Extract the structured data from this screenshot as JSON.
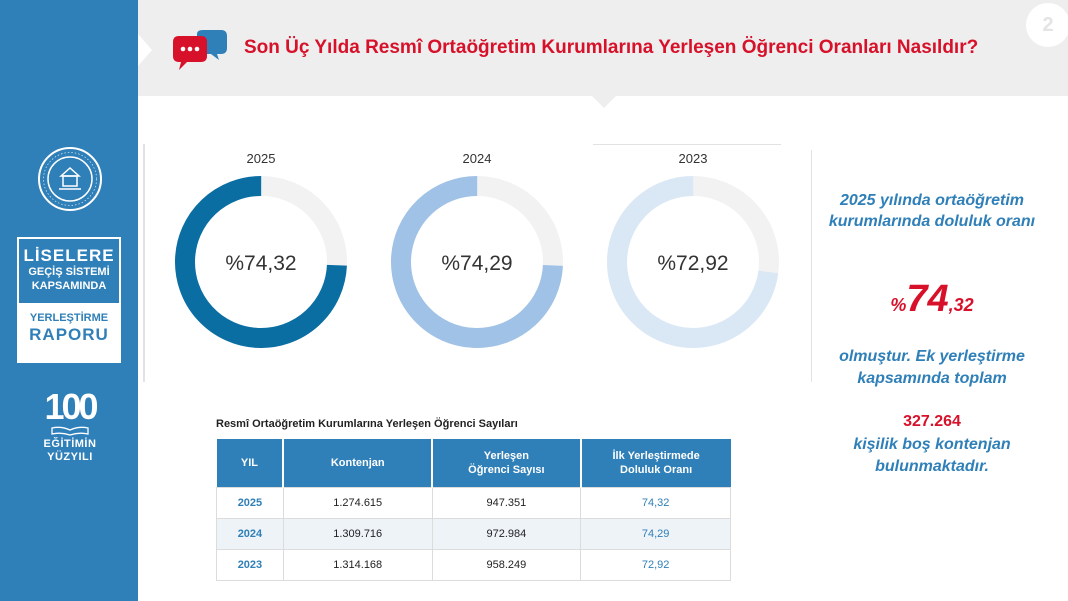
{
  "header": {
    "title": "Son Üç Yılda Resmî Ortaöğretim Kurumlarına Yerleşen Öğrenci Oranları Nasıldır?",
    "page_number": "2"
  },
  "sidebar": {
    "brand_line1": "LİSELERE",
    "brand_line2": "GEÇİŞ SİSTEMİ",
    "brand_line3": "KAPSAMINDA",
    "brand_line4": "YERLEŞTİRME",
    "brand_line5": "RAPORU",
    "century_number": "100",
    "century_line1": "EĞİTİMİN",
    "century_line2": "YÜZYILI"
  },
  "donuts": [
    {
      "year": "2025",
      "label": "%74,32",
      "value": 74.32,
      "color": "#0a6ea3"
    },
    {
      "year": "2024",
      "label": "%74,29",
      "value": 74.29,
      "color": "#9fc2e6"
    },
    {
      "year": "2023",
      "label": "%72,92",
      "value": 72.92,
      "color": "#dae8f6"
    }
  ],
  "right_panel": {
    "text1": "2025 yılında ortaöğretim kurumlarında doluluk oranı",
    "pct_symbol": "%",
    "pct_whole": "74",
    "pct_fraction": ",32",
    "text2": "olmuştur. Ek yerleştirme kapsamında toplam",
    "number": "327.264",
    "text3": "kişilik boş kontenjan bulunmaktadır."
  },
  "table": {
    "caption": "Resmî Ortaöğretim Kurumlarına Yerleşen Öğrenci Sayıları",
    "headers": [
      "YIL",
      "Kontenjan",
      "Yerleşen Öğrenci Sayısı",
      "İlk Yerleştirmede Doluluk Oranı"
    ],
    "rows": [
      [
        "2025",
        "1.274.615",
        "947.351",
        "74,32"
      ],
      [
        "2024",
        "1.309.716",
        "972.984",
        "74,29"
      ],
      [
        "2023",
        "1.314.168",
        "958.249",
        "72,92"
      ]
    ]
  }
}
